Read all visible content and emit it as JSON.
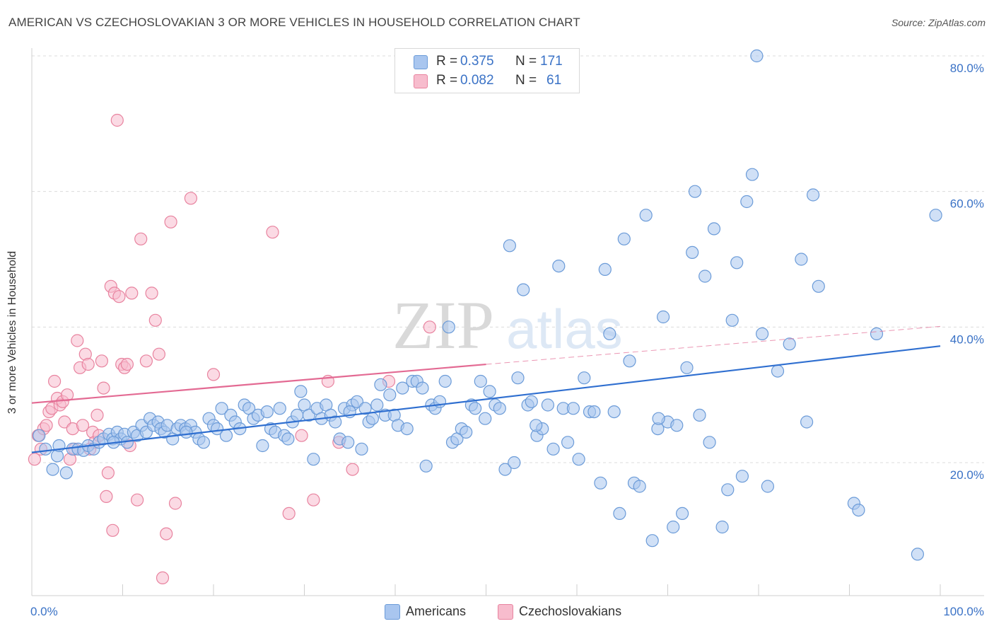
{
  "title": "AMERICAN VS CZECHOSLOVAKIAN 3 OR MORE VEHICLES IN HOUSEHOLD CORRELATION CHART",
  "source": "Source: ZipAtlas.com",
  "watermark": {
    "zip": "ZIP",
    "atlas": "atlas"
  },
  "stats_legend": {
    "rows": [
      {
        "r_label": "R =",
        "r_value": "0.375",
        "n_label": "N =",
        "n_value": "171",
        "color": "#a9c6ef",
        "border": "#6b9bd8"
      },
      {
        "r_label": "R =",
        "r_value": "0.082",
        "n_label": "N =",
        "n_value": "61",
        "color": "#f7bccd",
        "border": "#e8839f"
      }
    ]
  },
  "bottom_legend": [
    {
      "label": "Americans",
      "color": "#a9c6ef",
      "border": "#6b9bd8"
    },
    {
      "label": "Czechoslovakians",
      "color": "#f7bccd",
      "border": "#e8839f"
    }
  ],
  "chart_data": {
    "type": "scatter",
    "title": "AMERICAN VS CZECHOSLOVAKIAN 3 OR MORE VEHICLES IN HOUSEHOLD CORRELATION CHART",
    "xlabel": "",
    "ylabel": "3 or more Vehicles in Household",
    "xlim": [
      0,
      100
    ],
    "ylim": [
      0,
      82
    ],
    "x_tick_labels": [
      {
        "value": 0,
        "label": "0.0%"
      },
      {
        "value": 100,
        "label": "100.0%"
      }
    ],
    "y_tick_labels": [
      {
        "value": 20,
        "label": "20.0%"
      },
      {
        "value": 40,
        "label": "40.0%"
      },
      {
        "value": 60,
        "label": "60.0%"
      },
      {
        "value": 80,
        "label": "80.0%"
      }
    ],
    "grid": true,
    "legend_position": "top-center",
    "series": [
      {
        "name": "Americans",
        "color": "#a9c6ef",
        "stroke": "#6b9bd8",
        "trend": {
          "x": [
            0,
            100
          ],
          "y": [
            21.5,
            37.2
          ],
          "color": "#2f6fd0"
        },
        "points": [
          [
            0.8,
            24.0
          ],
          [
            1.5,
            22.0
          ],
          [
            2.3,
            19.0
          ],
          [
            2.8,
            21.0
          ],
          [
            3.8,
            18.5
          ],
          [
            4.5,
            22.0
          ],
          [
            5.1,
            22.0
          ],
          [
            5.7,
            21.8
          ],
          [
            6.2,
            22.5
          ],
          [
            6.8,
            22.0
          ],
          [
            7.4,
            23.0
          ],
          [
            7.9,
            23.5
          ],
          [
            8.5,
            24.2
          ],
          [
            8.9,
            23.5
          ],
          [
            9.4,
            24.5
          ],
          [
            9.8,
            23.5
          ],
          [
            10.2,
            24.2
          ],
          [
            10.5,
            23.0
          ],
          [
            11.2,
            24.5
          ],
          [
            11.6,
            24.0
          ],
          [
            12.1,
            25.5
          ],
          [
            12.6,
            24.5
          ],
          [
            13.0,
            26.5
          ],
          [
            13.4,
            25.5
          ],
          [
            13.9,
            26.0
          ],
          [
            14.2,
            25.0
          ],
          [
            14.6,
            24.5
          ],
          [
            14.9,
            25.5
          ],
          [
            15.5,
            23.5
          ],
          [
            16.0,
            25.0
          ],
          [
            16.4,
            25.5
          ],
          [
            16.9,
            25.0
          ],
          [
            17.5,
            25.5
          ],
          [
            18.0,
            24.5
          ],
          [
            18.4,
            23.5
          ],
          [
            18.9,
            23.0
          ],
          [
            19.5,
            26.5
          ],
          [
            20.0,
            25.5
          ],
          [
            20.4,
            25.0
          ],
          [
            20.9,
            28.0
          ],
          [
            21.4,
            24.0
          ],
          [
            21.9,
            27.0
          ],
          [
            22.4,
            26.0
          ],
          [
            22.9,
            25.0
          ],
          [
            23.4,
            28.5
          ],
          [
            23.9,
            28.0
          ],
          [
            24.4,
            26.5
          ],
          [
            24.9,
            27.0
          ],
          [
            25.4,
            22.5
          ],
          [
            25.9,
            27.5
          ],
          [
            26.3,
            25.0
          ],
          [
            26.8,
            24.5
          ],
          [
            27.3,
            28.0
          ],
          [
            27.8,
            24.0
          ],
          [
            28.2,
            23.5
          ],
          [
            28.7,
            26.0
          ],
          [
            29.2,
            27.0
          ],
          [
            29.6,
            30.5
          ],
          [
            30.0,
            28.5
          ],
          [
            30.5,
            27.0
          ],
          [
            31.0,
            20.5
          ],
          [
            31.4,
            28.0
          ],
          [
            31.9,
            26.5
          ],
          [
            32.4,
            28.5
          ],
          [
            32.9,
            27.0
          ],
          [
            33.4,
            26.0
          ],
          [
            33.9,
            23.5
          ],
          [
            34.4,
            28.0
          ],
          [
            34.8,
            23.0
          ],
          [
            35.3,
            28.5
          ],
          [
            35.8,
            29.0
          ],
          [
            36.3,
            22.0
          ],
          [
            36.7,
            28.0
          ],
          [
            37.1,
            26.0
          ],
          [
            37.5,
            26.5
          ],
          [
            38.0,
            28.5
          ],
          [
            38.4,
            31.5
          ],
          [
            38.9,
            27.0
          ],
          [
            39.4,
            30.0
          ],
          [
            39.9,
            27.0
          ],
          [
            40.3,
            25.5
          ],
          [
            40.8,
            31.0
          ],
          [
            41.3,
            25.0
          ],
          [
            41.9,
            32.0
          ],
          [
            42.4,
            32.0
          ],
          [
            43.0,
            31.0
          ],
          [
            43.4,
            19.5
          ],
          [
            44.0,
            28.5
          ],
          [
            44.4,
            28.0
          ],
          [
            44.9,
            29.0
          ],
          [
            45.5,
            32.0
          ],
          [
            45.9,
            40.0
          ],
          [
            46.3,
            23.0
          ],
          [
            46.8,
            23.5
          ],
          [
            47.3,
            25.0
          ],
          [
            47.8,
            24.5
          ],
          [
            48.4,
            28.5
          ],
          [
            48.8,
            28.0
          ],
          [
            49.4,
            32.0
          ],
          [
            49.9,
            26.5
          ],
          [
            50.4,
            30.5
          ],
          [
            51.0,
            28.5
          ],
          [
            51.5,
            28.0
          ],
          [
            52.1,
            19.0
          ],
          [
            52.6,
            52.0
          ],
          [
            53.1,
            20.0
          ],
          [
            53.5,
            32.5
          ],
          [
            54.1,
            45.5
          ],
          [
            54.6,
            28.5
          ],
          [
            55.0,
            29.0
          ],
          [
            55.6,
            24.0
          ],
          [
            56.2,
            25.0
          ],
          [
            56.8,
            28.5
          ],
          [
            57.4,
            22.0
          ],
          [
            58.0,
            49.0
          ],
          [
            58.5,
            28.0
          ],
          [
            59.0,
            23.0
          ],
          [
            59.6,
            28.0
          ],
          [
            60.2,
            20.5
          ],
          [
            60.8,
            32.5
          ],
          [
            61.4,
            27.5
          ],
          [
            61.9,
            27.5
          ],
          [
            62.6,
            17.0
          ],
          [
            63.1,
            48.5
          ],
          [
            63.6,
            39.0
          ],
          [
            64.1,
            27.5
          ],
          [
            64.7,
            12.5
          ],
          [
            65.2,
            53.0
          ],
          [
            65.8,
            35.0
          ],
          [
            66.3,
            17.0
          ],
          [
            66.9,
            16.5
          ],
          [
            67.6,
            56.5
          ],
          [
            68.3,
            8.5
          ],
          [
            68.9,
            25.0
          ],
          [
            69.5,
            41.5
          ],
          [
            70.0,
            26.0
          ],
          [
            70.6,
            10.5
          ],
          [
            71.0,
            25.5
          ],
          [
            71.6,
            12.5
          ],
          [
            72.1,
            34.0
          ],
          [
            72.7,
            51.0
          ],
          [
            73.0,
            60.0
          ],
          [
            73.5,
            27.0
          ],
          [
            74.1,
            47.5
          ],
          [
            74.6,
            23.0
          ],
          [
            75.1,
            54.5
          ],
          [
            76.0,
            10.5
          ],
          [
            76.6,
            16.0
          ],
          [
            77.1,
            41.0
          ],
          [
            77.6,
            49.5
          ],
          [
            78.2,
            18.0
          ],
          [
            78.7,
            58.5
          ],
          [
            79.3,
            62.5
          ],
          [
            79.8,
            80.0
          ],
          [
            80.4,
            39.0
          ],
          [
            81.0,
            16.5
          ],
          [
            82.1,
            33.5
          ],
          [
            83.4,
            37.5
          ],
          [
            84.7,
            50.0
          ],
          [
            85.3,
            26.0
          ],
          [
            86.0,
            59.5
          ],
          [
            86.6,
            46.0
          ],
          [
            90.5,
            14.0
          ],
          [
            91.0,
            13.0
          ],
          [
            93.0,
            39.0
          ],
          [
            97.5,
            6.5
          ],
          [
            99.5,
            56.5
          ],
          [
            3.0,
            22.5
          ],
          [
            9.0,
            23.0
          ],
          [
            17.0,
            24.5
          ],
          [
            35.0,
            27.5
          ],
          [
            55.5,
            25.5
          ],
          [
            69.0,
            26.5
          ]
        ]
      },
      {
        "name": "Czechoslovakians",
        "color": "#f7bccd",
        "stroke": "#e8839f",
        "trend": {
          "x": [
            0,
            50
          ],
          "y": [
            28.8,
            34.5
          ],
          "dash_x": [
            50,
            100
          ],
          "dash_y": [
            34.5,
            40.1
          ],
          "color": "#e36a93"
        },
        "points": [
          [
            0.3,
            20.5
          ],
          [
            0.7,
            24.0
          ],
          [
            1.0,
            22.0
          ],
          [
            1.3,
            25.0
          ],
          [
            1.6,
            25.5
          ],
          [
            1.9,
            27.5
          ],
          [
            2.2,
            28.0
          ],
          [
            2.5,
            32.0
          ],
          [
            2.8,
            29.5
          ],
          [
            3.1,
            28.5
          ],
          [
            3.4,
            29.0
          ],
          [
            3.6,
            26.0
          ],
          [
            3.9,
            30.0
          ],
          [
            4.2,
            20.5
          ],
          [
            4.5,
            25.0
          ],
          [
            4.7,
            22.0
          ],
          [
            5.0,
            38.0
          ],
          [
            5.3,
            34.0
          ],
          [
            5.6,
            25.5
          ],
          [
            5.9,
            36.0
          ],
          [
            6.2,
            34.5
          ],
          [
            6.4,
            22.0
          ],
          [
            6.7,
            24.5
          ],
          [
            6.9,
            23.0
          ],
          [
            7.2,
            27.0
          ],
          [
            7.4,
            24.0
          ],
          [
            7.7,
            35.0
          ],
          [
            7.9,
            31.0
          ],
          [
            8.2,
            15.0
          ],
          [
            8.4,
            18.5
          ],
          [
            8.7,
            46.0
          ],
          [
            8.9,
            10.0
          ],
          [
            9.1,
            45.0
          ],
          [
            9.4,
            70.5
          ],
          [
            9.6,
            44.5
          ],
          [
            9.9,
            34.5
          ],
          [
            10.2,
            34.0
          ],
          [
            10.5,
            34.5
          ],
          [
            10.8,
            22.5
          ],
          [
            11.0,
            45.0
          ],
          [
            11.6,
            14.5
          ],
          [
            12.0,
            53.0
          ],
          [
            12.6,
            35.0
          ],
          [
            13.2,
            45.0
          ],
          [
            13.6,
            41.0
          ],
          [
            14.0,
            36.0
          ],
          [
            14.4,
            3.0
          ],
          [
            14.8,
            9.5
          ],
          [
            15.3,
            55.5
          ],
          [
            15.8,
            14.0
          ],
          [
            17.5,
            59.0
          ],
          [
            20.0,
            33.0
          ],
          [
            26.5,
            54.0
          ],
          [
            28.3,
            12.5
          ],
          [
            29.7,
            24.0
          ],
          [
            31.0,
            14.5
          ],
          [
            32.6,
            32.0
          ],
          [
            33.8,
            23.0
          ],
          [
            35.3,
            19.0
          ],
          [
            39.3,
            32.0
          ],
          [
            43.8,
            40.0
          ]
        ]
      }
    ]
  }
}
